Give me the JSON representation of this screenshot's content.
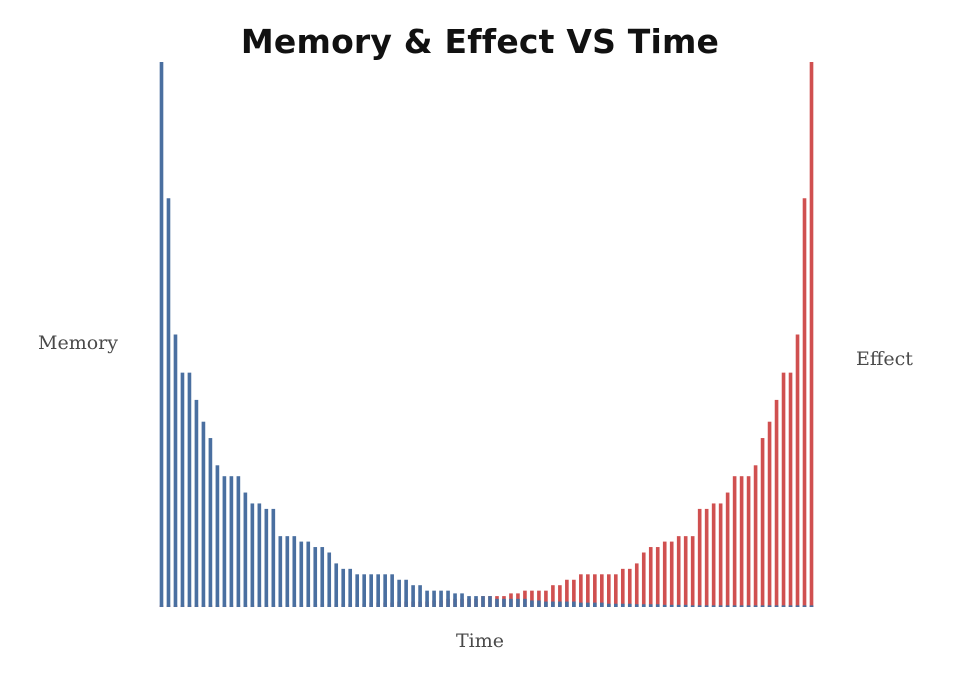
{
  "chart_data": {
    "type": "bar",
    "title": "Memory & Effect VS Time",
    "xlabel": "Time",
    "ylabel_left": "Memory",
    "ylabel_right": "Effect",
    "grid": false,
    "legend": "none",
    "ylim": [
      0,
      100
    ],
    "colors": {
      "memory": "#4a6fa0",
      "effect": "#d05050"
    },
    "series": [
      {
        "name": "Memory",
        "values": [
          100,
          75,
          50,
          43,
          43,
          38,
          34,
          31,
          26,
          24,
          24,
          24,
          21,
          19,
          19,
          18,
          18,
          13,
          13,
          13,
          12,
          12,
          11,
          11,
          10,
          8,
          7,
          7,
          6,
          6,
          6,
          6,
          6,
          6,
          5,
          5,
          4,
          4,
          3,
          3,
          3,
          3,
          2.5,
          2.5,
          2,
          2,
          2,
          2,
          1.5,
          1.5,
          1.5,
          1.5,
          1.5,
          1.2,
          1.2,
          1,
          1,
          1,
          1,
          1,
          0.8,
          0.8,
          0.8,
          0.8,
          0.6,
          0.6,
          0.6,
          0.6,
          0.5,
          0.5,
          0.5,
          0.5,
          0.4,
          0.4,
          0.4,
          0.4,
          0.3,
          0.3,
          0.3,
          0.3,
          0.3,
          0.3,
          0.3,
          0.3,
          0.3,
          0.3,
          0.3,
          0.3,
          0.3,
          0.3,
          0.3,
          0.3,
          0.3,
          0.3
        ]
      },
      {
        "name": "Effect",
        "values": [
          0.3,
          0.3,
          0.3,
          0.3,
          0.3,
          0.3,
          0.3,
          0.3,
          0.3,
          0.3,
          0.3,
          0.3,
          0.3,
          0.3,
          0.3,
          0.3,
          0.3,
          0.3,
          0.4,
          0.4,
          0.4,
          0.4,
          0.5,
          0.5,
          0.5,
          0.5,
          0.6,
          0.6,
          0.6,
          0.6,
          0.8,
          0.8,
          0.8,
          0.8,
          1,
          1,
          1,
          1,
          1,
          1.2,
          1.2,
          1.5,
          1.5,
          1.5,
          1.5,
          1.5,
          2,
          2,
          2,
          2,
          2.5,
          2.5,
          3,
          3,
          3,
          3,
          4,
          4,
          5,
          5,
          6,
          6,
          6,
          6,
          6,
          6,
          7,
          7,
          8,
          10,
          11,
          11,
          12,
          12,
          13,
          13,
          13,
          18,
          18,
          19,
          19,
          21,
          24,
          24,
          24,
          26,
          31,
          34,
          38,
          43,
          43,
          50,
          75,
          100
        ]
      }
    ]
  }
}
